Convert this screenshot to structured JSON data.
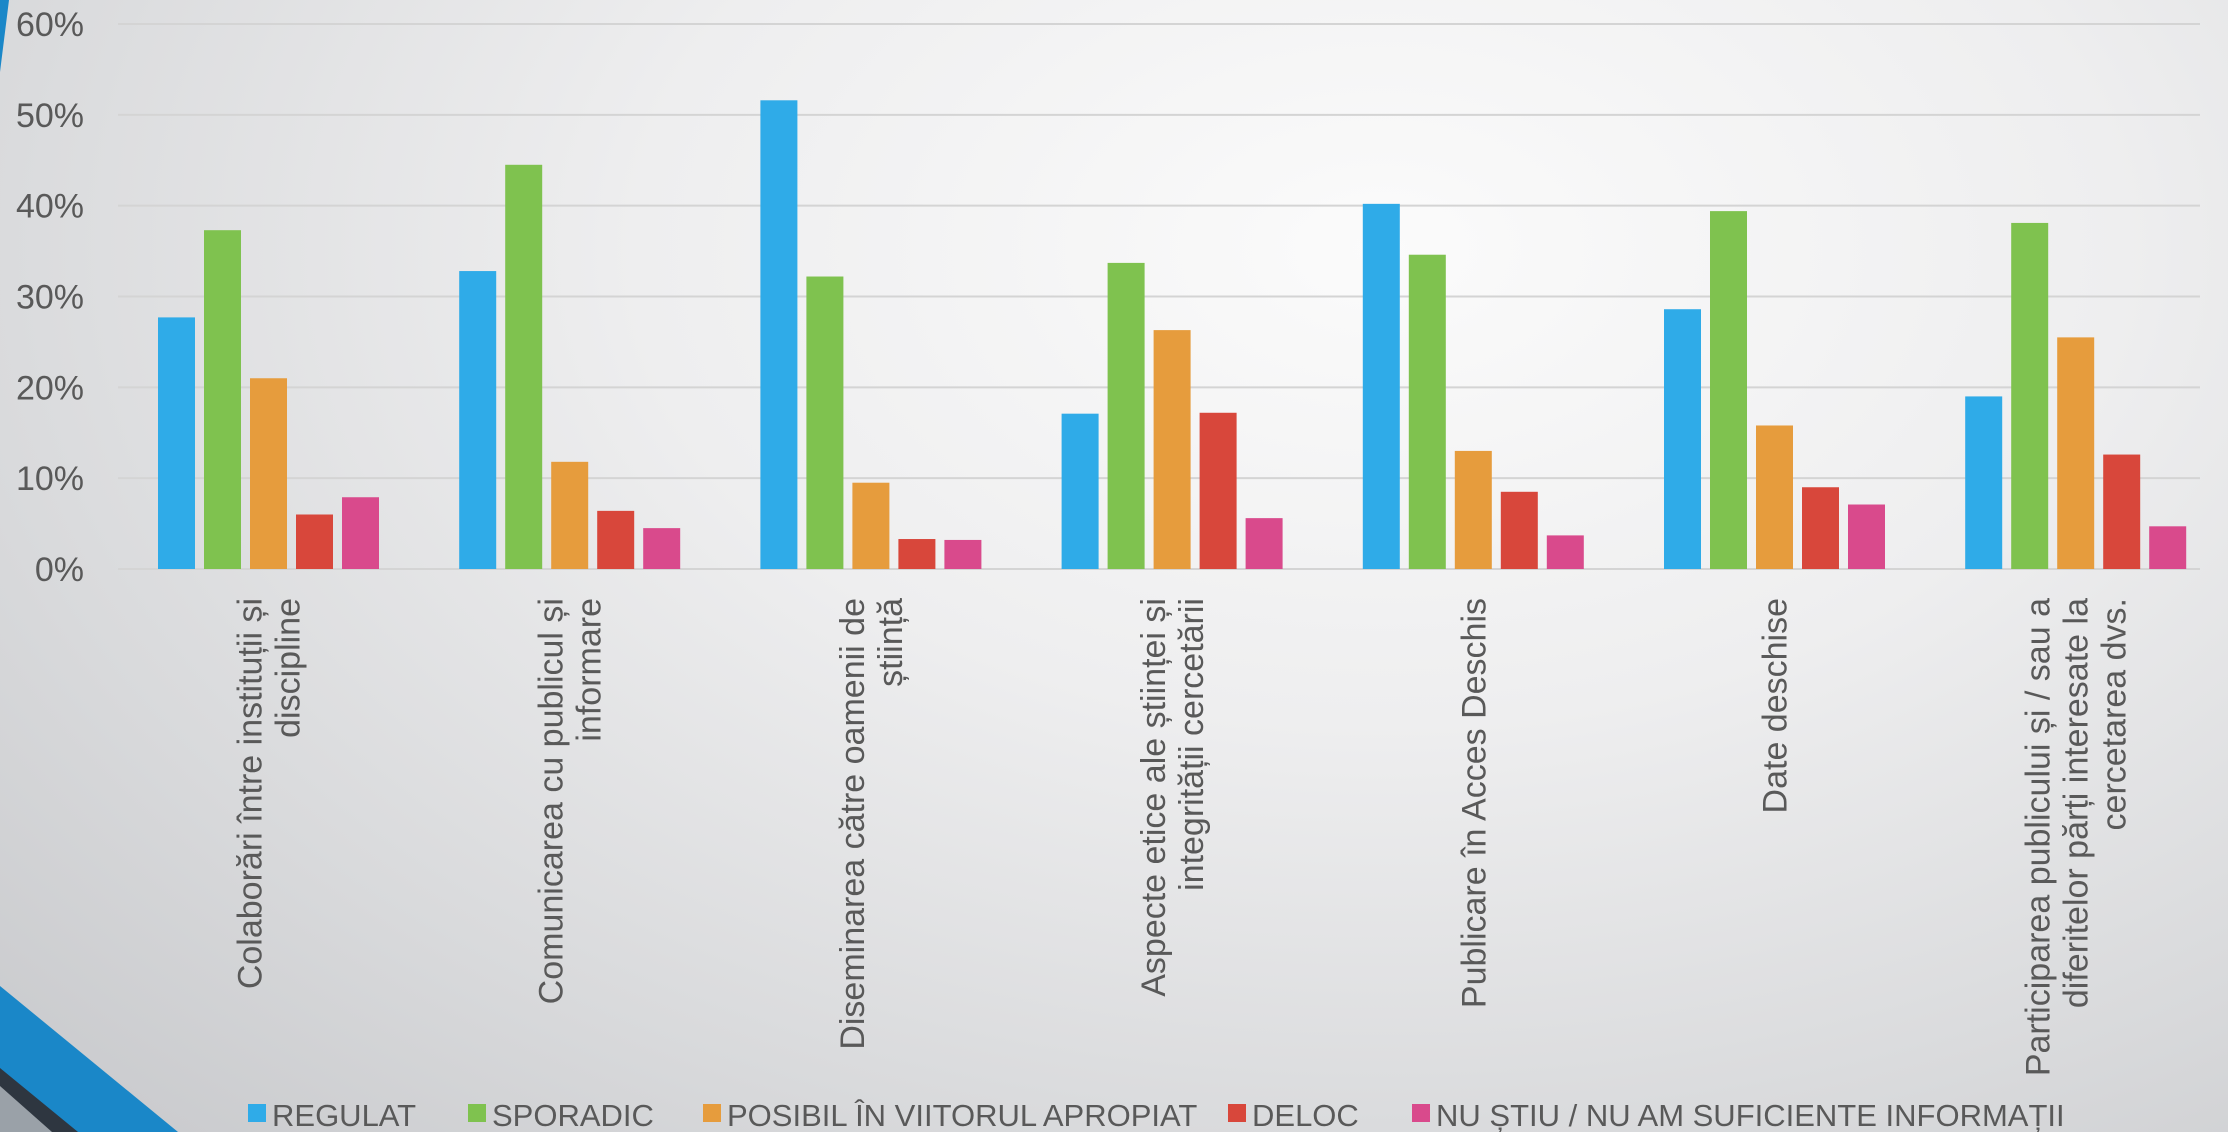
{
  "chart_data": {
    "type": "bar",
    "ylim": [
      0,
      60
    ],
    "yticks": [
      0,
      10,
      20,
      30,
      40,
      50,
      60
    ],
    "ytick_suffix": "%",
    "grid": true,
    "legend_position": "bottom",
    "categories": [
      [
        "Colaborări între instituții și",
        "discipline"
      ],
      [
        "Comunicarea cu publicul și",
        "informare"
      ],
      [
        "Diseminarea către oamenii de",
        "știință"
      ],
      [
        "Aspecte etice ale științei și",
        "integrității cercetării"
      ],
      [
        "Publicare în Acces Deschis"
      ],
      [
        "Date deschise"
      ],
      [
        "Participarea publicului și / sau a",
        "diferitelor părți interesate la",
        "cercetarea dvs."
      ]
    ],
    "series": [
      {
        "name": "REGULAT",
        "color": "#2fabe8",
        "values": [
          27.7,
          32.8,
          51.6,
          17.1,
          40.2,
          28.6,
          19.0
        ]
      },
      {
        "name": "SPORADIC",
        "color": "#7fc24f",
        "values": [
          37.3,
          44.5,
          32.2,
          33.7,
          34.6,
          39.4,
          38.1
        ]
      },
      {
        "name": "POSIBIL ÎN VIITORUL APROPIAT",
        "color": "#e69c3d",
        "values": [
          21.0,
          11.8,
          9.5,
          26.3,
          13.0,
          15.8,
          25.5
        ]
      },
      {
        "name": "DELOC",
        "color": "#d8473b",
        "values": [
          6.0,
          6.4,
          3.3,
          17.2,
          8.5,
          9.0,
          12.6
        ]
      },
      {
        "name": "NU ȘTIU / NU AM SUFICIENTE INFORMAȚII",
        "color": "#d94a8c",
        "values": [
          7.9,
          4.5,
          3.2,
          5.6,
          3.7,
          7.1,
          4.7
        ]
      }
    ]
  },
  "theme": {
    "axis_text_color": "#595959",
    "gridline_color": "#d4d4d4",
    "accent_blue": "#1a87c8",
    "accent_dark": "#2e3640"
  }
}
